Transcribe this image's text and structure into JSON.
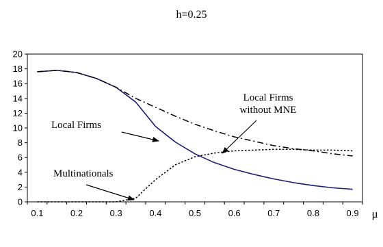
{
  "chart_data": {
    "type": "line",
    "title": "h=0.25",
    "xlabel": "μ",
    "ylabel": "",
    "xlim": [
      0.075,
      0.925
    ],
    "ylim": [
      0,
      20
    ],
    "x_ticks": [
      "0.1",
      "0.2",
      "0.3",
      "0.4",
      "0.5",
      "0.6",
      "0.7",
      "0.8",
      "0.9"
    ],
    "y_ticks": [
      "0",
      "2",
      "4",
      "6",
      "8",
      "10",
      "12",
      "14",
      "16",
      "18",
      "20"
    ],
    "grid": false,
    "series": [
      {
        "name": "Local Firms",
        "color": "#1c1c6e",
        "style": "solid",
        "x": [
          0.1,
          0.15,
          0.2,
          0.25,
          0.3,
          0.35,
          0.4,
          0.45,
          0.5,
          0.55,
          0.6,
          0.65,
          0.7,
          0.75,
          0.8,
          0.85,
          0.9
        ],
        "y": [
          17.6,
          17.8,
          17.5,
          16.7,
          15.5,
          13.5,
          10.2,
          8.1,
          6.5,
          5.3,
          4.4,
          3.7,
          3.1,
          2.6,
          2.2,
          1.9,
          1.7
        ]
      },
      {
        "name": "Local Firms without MNE",
        "color": "#000000",
        "style": "dashdot",
        "x": [
          0.1,
          0.15,
          0.2,
          0.25,
          0.3,
          0.35,
          0.4,
          0.45,
          0.5,
          0.55,
          0.6,
          0.65,
          0.7,
          0.75,
          0.8,
          0.85,
          0.9
        ],
        "y": [
          17.6,
          17.8,
          17.5,
          16.7,
          15.5,
          14.0,
          12.8,
          11.6,
          10.5,
          9.6,
          8.8,
          8.2,
          7.6,
          7.2,
          6.9,
          6.5,
          6.2
        ]
      },
      {
        "name": "Multinationals",
        "color": "#000000",
        "style": "dotted",
        "x": [
          0.1,
          0.15,
          0.2,
          0.25,
          0.3,
          0.35,
          0.4,
          0.45,
          0.5,
          0.55,
          0.6,
          0.65,
          0.7,
          0.75,
          0.8,
          0.85,
          0.9
        ],
        "y": [
          0,
          0,
          0,
          0,
          0,
          0.5,
          3.0,
          5.0,
          6.1,
          6.6,
          6.9,
          7.0,
          7.1,
          7.1,
          7.0,
          7.0,
          6.9
        ]
      }
    ],
    "annotations": [
      {
        "lines": [
          "Local Firms",
          "without MNE"
        ],
        "for": "Local Firms without MNE"
      },
      {
        "lines": [
          "Local Firms"
        ],
        "for": "Local Firms"
      },
      {
        "lines": [
          "Multinationals"
        ],
        "for": "Multinationals"
      }
    ]
  }
}
